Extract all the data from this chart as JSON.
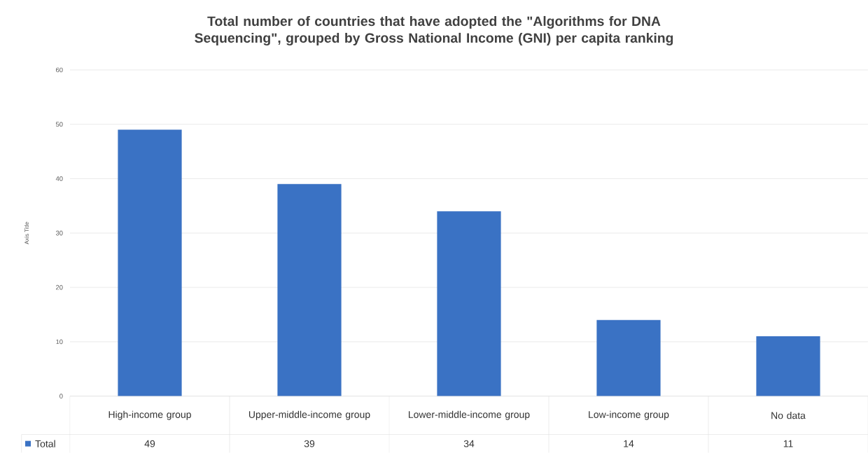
{
  "chart_data": {
    "type": "bar",
    "title": "Total  number of  countries that have adopted the \"Algorithms for DNA Sequencing\", grouped by Gross National Income (GNI) per capita ranking",
    "ylabel": "Axis Title",
    "categories": [
      "High-income group",
      "Upper-middle-income group",
      "Lower-middle-income group",
      "Low-income group",
      "No data"
    ],
    "series": [
      {
        "name": "Total",
        "color": "#3a72c4",
        "values": [
          49,
          39,
          34,
          14,
          11
        ]
      }
    ],
    "ylim": [
      0,
      60
    ],
    "yticks": [
      0,
      10,
      20,
      30,
      40,
      50,
      60
    ],
    "grid": "y",
    "legend": "bottom left",
    "data_labels": true
  }
}
